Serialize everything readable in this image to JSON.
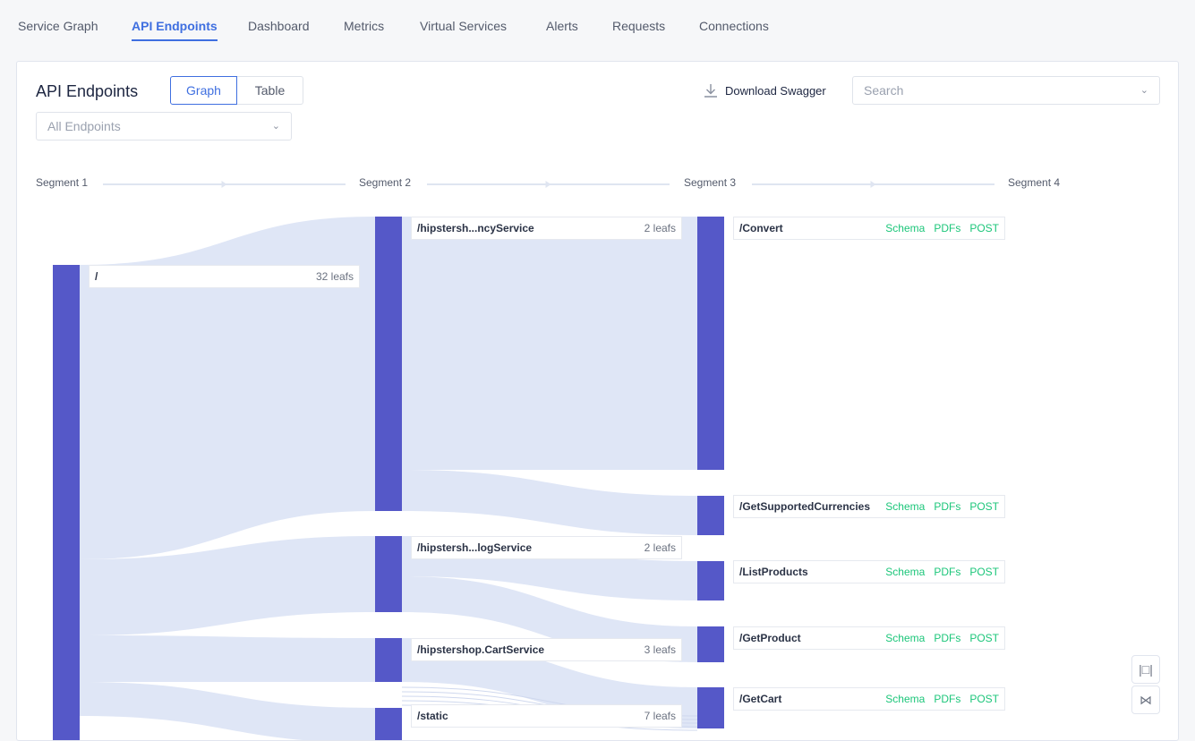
{
  "tabs": [
    "Service Graph",
    "API Endpoints",
    "Dashboard",
    "Metrics",
    "Virtual Services",
    "Alerts",
    "Requests",
    "Connections"
  ],
  "active_tab": "API Endpoints",
  "title": "API Endpoints",
  "view_toggle": {
    "graph": "Graph",
    "table": "Table",
    "selected": "Graph"
  },
  "filter": {
    "value": "All Endpoints"
  },
  "download_label": "Download Swagger",
  "search": {
    "placeholder": "Search"
  },
  "segments": [
    "Segment 1",
    "Segment 2",
    "Segment 3",
    "Segment 4"
  ],
  "colors": {
    "node": "#5558c8",
    "link": "#dfe6f6",
    "accent": "#3f6fe0",
    "action": "#1cc67a"
  },
  "nodes": {
    "root": {
      "name": "/",
      "leafs": "32 leafs"
    },
    "seg2": [
      {
        "name": "/hipstersh...ncyService",
        "leafs": "2 leafs"
      },
      {
        "name": "/hipstersh...logService",
        "leafs": "2 leafs"
      },
      {
        "name": "/hipstershop.CartService",
        "leafs": "3 leafs"
      },
      {
        "name": "/static",
        "leafs": "7 leafs"
      }
    ],
    "seg3": [
      {
        "name": "/Convert"
      },
      {
        "name": "/GetSupportedCurrencies"
      },
      {
        "name": "/ListProducts"
      },
      {
        "name": "/GetProduct"
      },
      {
        "name": "/GetCart"
      }
    ],
    "actions": [
      "Schema",
      "PDFs",
      "POST"
    ]
  }
}
